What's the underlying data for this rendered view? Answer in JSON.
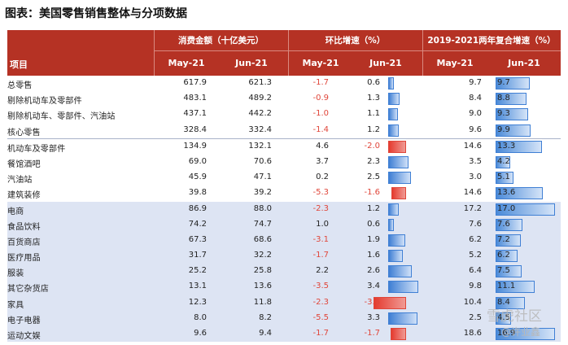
{
  "title": "图表：美国零售销售整体与分项数据",
  "header": {
    "group1": "消费金额（十亿美元）",
    "group2": "环比增速（%）",
    "group3": "2019-2021两年复合增速（%）",
    "item": "项目",
    "months": [
      "May-21",
      "Jun-21",
      "May-21",
      "Jun-21",
      "May-21",
      "Jun-21"
    ]
  },
  "rows": [
    {
      "name": "总零售",
      "amt_may": "617.9",
      "amt_jun": "621.3",
      "mom_may": "-1.7",
      "mom_jun": "0.6",
      "cagr_may": "9.7",
      "cagr_jun": "9.7"
    },
    {
      "name": "剔除机动车及零部件",
      "amt_may": "483.1",
      "amt_jun": "489.2",
      "mom_may": "-0.9",
      "mom_jun": "1.3",
      "cagr_may": "8.4",
      "cagr_jun": "8.8"
    },
    {
      "name": "剔除机动车、零部件、汽油站",
      "amt_may": "437.1",
      "amt_jun": "442.2",
      "mom_may": "-1.0",
      "mom_jun": "1.1",
      "cagr_may": "9.0",
      "cagr_jun": "9.3"
    },
    {
      "name": "核心零售",
      "amt_may": "328.4",
      "amt_jun": "332.4",
      "mom_may": "-1.4",
      "mom_jun": "1.2",
      "cagr_may": "9.6",
      "cagr_jun": "9.9"
    },
    {
      "name": "机动车及零部件",
      "amt_may": "134.9",
      "amt_jun": "132.1",
      "mom_may": "4.6",
      "mom_jun": "-2.0",
      "cagr_may": "14.6",
      "cagr_jun": "13.3"
    },
    {
      "name": "餐馆酒吧",
      "amt_may": "69.0",
      "amt_jun": "70.6",
      "mom_may": "3.7",
      "mom_jun": "2.3",
      "cagr_may": "3.5",
      "cagr_jun": "4.2"
    },
    {
      "name": "汽油站",
      "amt_may": "45.9",
      "amt_jun": "47.1",
      "mom_may": "0.2",
      "mom_jun": "2.5",
      "cagr_may": "3.0",
      "cagr_jun": "5.1"
    },
    {
      "name": "建筑装修",
      "amt_may": "39.8",
      "amt_jun": "39.2",
      "mom_may": "-5.3",
      "mom_jun": "-1.6",
      "cagr_may": "14.6",
      "cagr_jun": "13.6"
    },
    {
      "name": "电商",
      "amt_may": "86.9",
      "amt_jun": "88.0",
      "mom_may": "-2.3",
      "mom_jun": "1.2",
      "cagr_may": "17.2",
      "cagr_jun": "17.0"
    },
    {
      "name": "食品饮料",
      "amt_may": "74.2",
      "amt_jun": "74.7",
      "mom_may": "1.0",
      "mom_jun": "0.6",
      "cagr_may": "7.6",
      "cagr_jun": "7.6"
    },
    {
      "name": "百货商店",
      "amt_may": "67.3",
      "amt_jun": "68.6",
      "mom_may": "-3.1",
      "mom_jun": "1.9",
      "cagr_may": "6.2",
      "cagr_jun": "7.2"
    },
    {
      "name": "医疗用品",
      "amt_may": "31.7",
      "amt_jun": "32.2",
      "mom_may": "-1.7",
      "mom_jun": "1.6",
      "cagr_may": "5.2",
      "cagr_jun": "6.2"
    },
    {
      "name": "服装",
      "amt_may": "25.2",
      "amt_jun": "25.8",
      "mom_may": "2.2",
      "mom_jun": "2.6",
      "cagr_may": "6.4",
      "cagr_jun": "7.5"
    },
    {
      "name": "其它杂货店",
      "amt_may": "13.1",
      "amt_jun": "13.6",
      "mom_may": "-3.5",
      "mom_jun": "3.4",
      "cagr_may": "9.8",
      "cagr_jun": "11.1"
    },
    {
      "name": "家具",
      "amt_may": "12.3",
      "amt_jun": "11.8",
      "mom_may": "-2.3",
      "mom_jun": "-3.6",
      "cagr_may": "10.4",
      "cagr_jun": "8.4"
    },
    {
      "name": "电子电器",
      "amt_may": "8.0",
      "amt_jun": "8.2",
      "mom_may": "-5.5",
      "mom_jun": "3.3",
      "cagr_may": "2.5",
      "cagr_jun": "4.5"
    },
    {
      "name": "运动文娱",
      "amt_may": "9.6",
      "amt_jun": "9.4",
      "mom_may": "-1.7",
      "mom_jun": "-1.7",
      "cagr_may": "18.6",
      "cagr_jun": "16.9"
    }
  ],
  "watermark": "雪虎社区",
  "watermark_user": "@许业鑫",
  "colors": {
    "header_bg": "#b53224",
    "blue_rows": "#dde4f3",
    "neg_text": "#e0463a",
    "pos_bar": "#3f7fd4",
    "neg_bar": "#e53b2f"
  }
}
